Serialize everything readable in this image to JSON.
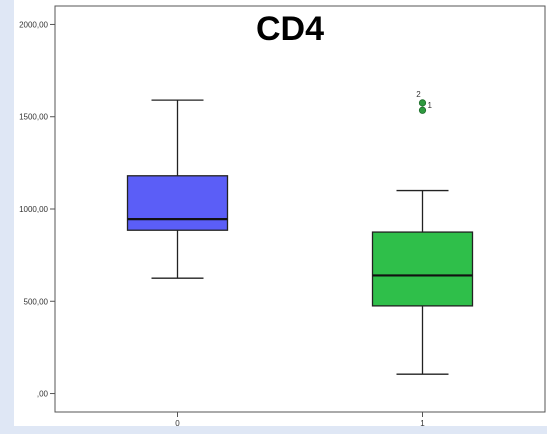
{
  "chart_data": {
    "type": "boxplot",
    "title": "CD4",
    "xlabel": "",
    "ylabel": "",
    "categories": [
      "0",
      "1"
    ],
    "ylim": [
      -100,
      2100
    ],
    "yticks": [
      0,
      500,
      1000,
      1500,
      2000
    ],
    "ytick_labels": [
      ",00",
      "500,00",
      "1000,00",
      "1500,00",
      "2000,00"
    ],
    "grid": false,
    "boxes": [
      {
        "category": "0",
        "whisker_low": 625,
        "q1": 885,
        "median": 945,
        "q3": 1180,
        "whisker_high": 1590,
        "color": "#5b5ef7",
        "outliers": []
      },
      {
        "category": "1",
        "whisker_low": 105,
        "q1": 475,
        "median": 640,
        "q3": 875,
        "whisker_high": 1100,
        "color": "#2fbf4a",
        "outliers": [
          {
            "value": 1575,
            "label": "2"
          },
          {
            "value": 1535,
            "label": "1"
          }
        ]
      }
    ]
  }
}
